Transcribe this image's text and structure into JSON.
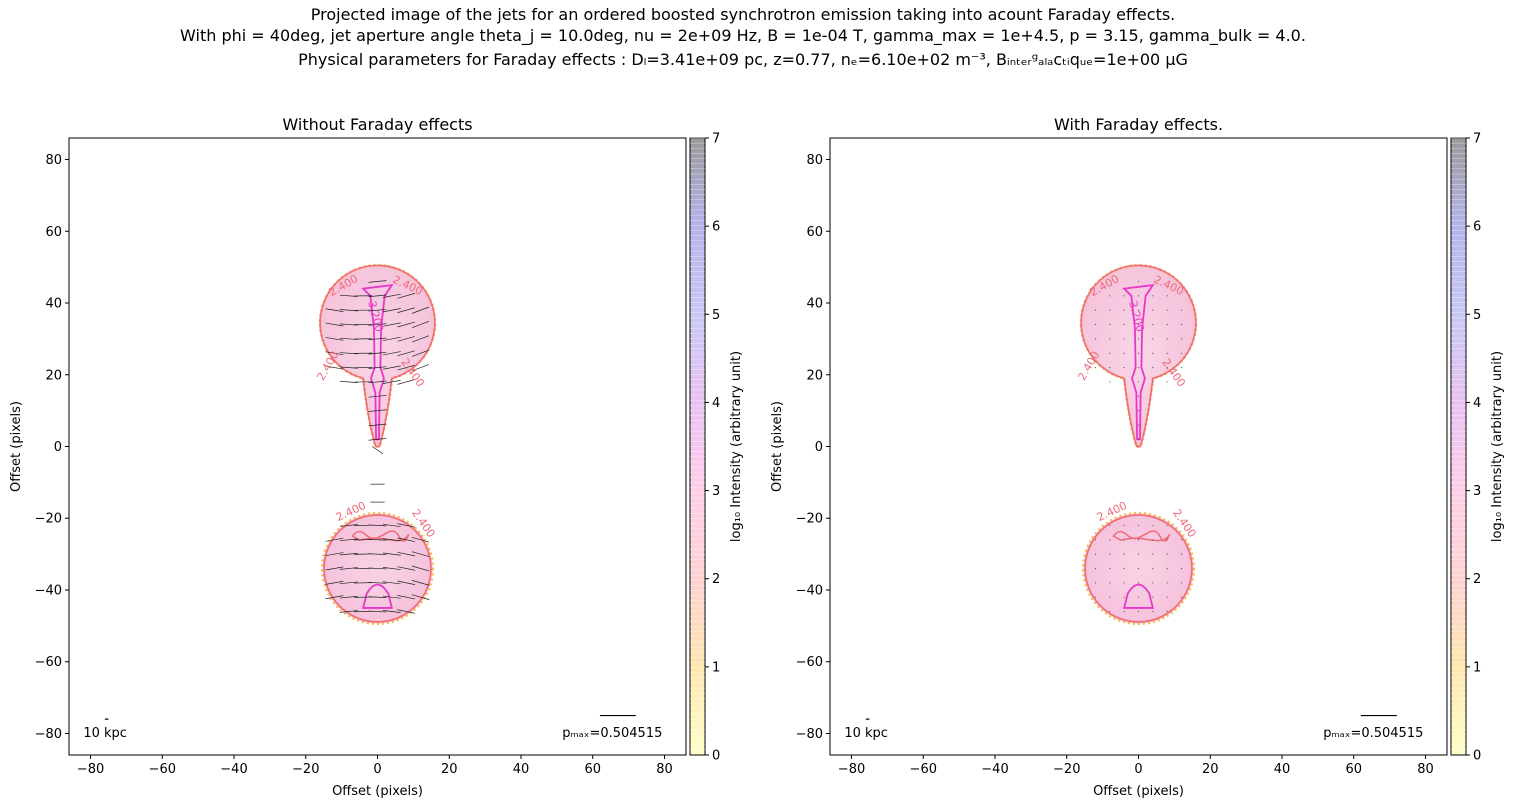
{
  "figure": {
    "suptitle_line1": "Projected image of the jets for an ordered boosted synchrotron emission taking into acount Faraday effects.",
    "suptitle_line2": "With phi = 40deg, jet aperture angle theta_j = 10.0deg, nu = 2e+09 Hz, B = 1e-04 T, gamma_max = 1e+4.5, p = 3.15, gamma_bulk = 4.0.",
    "suptitle_line3": "Physical parameters for Faraday effects : Dₗ=3.41e+09 pc, z=0.77, nₑ=6.10e+02 m⁻³, Bᵢₙₜₑᵣᵍₐₗₐcₜᵢqᵤₑ=1e+00 μG"
  },
  "colors": {
    "axes": "#000000",
    "disk_fill": "#f7c6de",
    "outer_contour": "#f06a7a",
    "inner_contour": "#e838c8",
    "edge_dots": "#f5b84c",
    "colormap": [
      "#ffffc8",
      "#ffe6b0",
      "#ffd2d2",
      "#ffcfe8",
      "#e8c2f2",
      "#c8c8f4",
      "#b4b4ec",
      "#9a9a9a"
    ]
  },
  "chart_data": [
    {
      "type": "heatmap",
      "title": "Without Faraday effects",
      "xlabel": "Offset (pixels)",
      "ylabel": "Offset (pixels)",
      "xlim": [
        -86,
        86
      ],
      "ylim": [
        -86,
        86
      ],
      "xticks": [
        "−80",
        "−60",
        "−40",
        "−20",
        "0",
        "20",
        "40",
        "60",
        "80"
      ],
      "yticks": [
        "−80",
        "−60",
        "−40",
        "−20",
        "0",
        "20",
        "40",
        "60",
        "80"
      ],
      "colorbar_label": "log₁₀ Intensity (arbitrary unit)",
      "colorbar_range": [
        0,
        7
      ],
      "colorbar_ticks": [
        "0",
        "1",
        "2",
        "3",
        "4",
        "5",
        "6",
        "7"
      ],
      "contour_labels_outer": [
        "2.400",
        "2.400",
        "2.400",
        "2.400",
        "2.400",
        "2.400"
      ],
      "contour_label_inner": "3.200",
      "scale_bar_label": "10 kpc",
      "pmax_label": "pₘₐₓ=0.504515",
      "polarization_vectors": true
    },
    {
      "type": "heatmap",
      "title": "With Faraday effects.",
      "xlabel": "Offset (pixels)",
      "ylabel": "Offset (pixels)",
      "xlim": [
        -86,
        86
      ],
      "ylim": [
        -86,
        86
      ],
      "xticks": [
        "−80",
        "−60",
        "−40",
        "−20",
        "0",
        "20",
        "40",
        "60",
        "80"
      ],
      "yticks": [
        "−80",
        "−60",
        "−40",
        "−20",
        "0",
        "20",
        "40",
        "60",
        "80"
      ],
      "colorbar_label": "log₁₀ Intensity (arbitrary unit)",
      "colorbar_range": [
        0,
        7
      ],
      "colorbar_ticks": [
        "0",
        "1",
        "2",
        "3",
        "4",
        "5",
        "6",
        "7"
      ],
      "contour_labels_outer": [
        "2.400",
        "2.400",
        "2.400",
        "2.400",
        "2.400",
        "2.400"
      ],
      "contour_label_inner": "3.200",
      "scale_bar_label": "10 kpc",
      "pmax_label": "pₘₐₓ=0.504515",
      "polarization_vectors": false
    }
  ]
}
